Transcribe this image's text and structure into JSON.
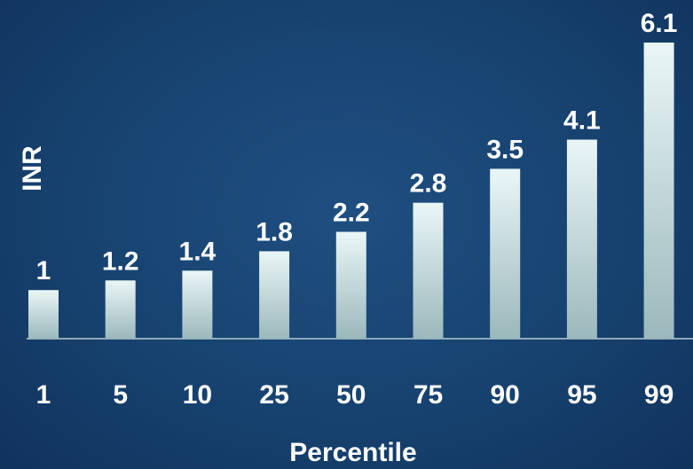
{
  "chart_data": {
    "type": "bar",
    "categories": [
      "1",
      "5",
      "10",
      "25",
      "50",
      "75",
      "90",
      "95",
      "99"
    ],
    "values": [
      1,
      1.2,
      1.4,
      1.8,
      2.2,
      2.8,
      3.5,
      4.1,
      6.1
    ],
    "value_labels": [
      "1",
      "1.2",
      "1.4",
      "1.8",
      "2.2",
      "2.8",
      "3.5",
      "4.1",
      "6.1"
    ],
    "xlabel": "Percentile",
    "ylabel": "INR",
    "ylim": [
      0,
      6.1
    ],
    "grid": false,
    "legend": "none",
    "colors": {
      "background": "#174270",
      "bar_top": "#eaf6f6",
      "bar_bottom": "#9bb8bc",
      "baseline": "#8fa9b8",
      "text": "#ffffff"
    }
  }
}
